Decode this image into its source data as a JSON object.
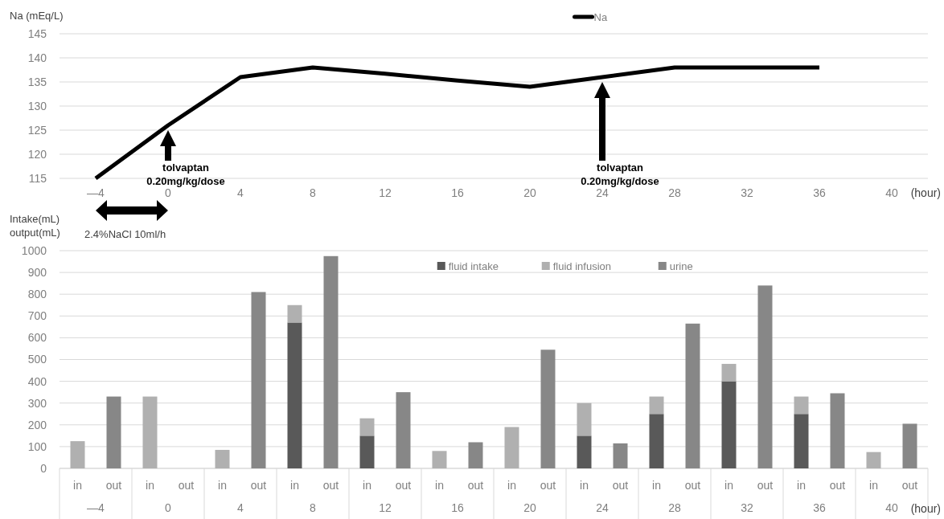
{
  "chart_data": [
    {
      "type": "line",
      "ylabel": "Na (mEq/L)",
      "xlabel": "(hour)",
      "categories": [
        "—4",
        "0",
        "4",
        "8",
        "12",
        "16",
        "20",
        "24",
        "28",
        "32",
        "36",
        "40"
      ],
      "series": [
        {
          "name": "Na",
          "color": "#000000",
          "values": [
            115,
            126,
            136,
            138,
            136.7,
            135.3,
            134,
            136,
            138,
            138,
            138,
            null
          ]
        }
      ],
      "ylim": [
        115,
        145
      ],
      "yticks": [
        115,
        120,
        125,
        130,
        135,
        140,
        145
      ],
      "grid": "y",
      "legend": "top",
      "marker": "none",
      "annotations": [
        "tolvaptan\n0.20mg/kg/dose",
        "tolvaptan\n0.20mg/kg/dose",
        "2.4%NaCl 10ml/h"
      ]
    },
    {
      "type": "bar",
      "stacked": true,
      "ylabel": "Intake(mL)\noutput(mL)",
      "xlabel": "(hour)",
      "categories": [
        "in",
        "out",
        "in",
        "out",
        "in",
        "out",
        "in",
        "out",
        "in",
        "out",
        "in",
        "out",
        "in",
        "out",
        "in",
        "out",
        "in",
        "out",
        "in",
        "out",
        "in",
        "out",
        "in",
        "out"
      ],
      "series": [
        {
          "name": "fluid intake",
          "color": "#595959",
          "values": [
            null,
            null,
            null,
            null,
            null,
            null,
            670,
            null,
            150,
            null,
            null,
            null,
            null,
            null,
            150,
            null,
            250,
            null,
            400,
            null,
            250,
            null,
            null,
            null
          ]
        },
        {
          "name": "fluid infusion",
          "color": "#b0b0b0",
          "values": [
            125,
            null,
            330,
            null,
            85,
            null,
            80,
            null,
            80,
            null,
            80,
            null,
            190,
            null,
            150,
            null,
            80,
            null,
            80,
            null,
            80,
            null,
            75,
            null
          ]
        },
        {
          "name": "urine",
          "color": "#878787",
          "values": [
            null,
            330,
            null,
            null,
            null,
            810,
            null,
            975,
            null,
            350,
            null,
            120,
            null,
            545,
            null,
            115,
            null,
            665,
            null,
            840,
            null,
            345,
            null,
            205
          ]
        }
      ],
      "ylim": [
        0,
        1000
      ],
      "yticks": [
        0,
        100,
        200,
        300,
        400,
        500,
        600,
        700,
        800,
        900,
        1000
      ],
      "grid": "y",
      "legend": "top",
      "annotations": [
        "—4",
        "0",
        "4",
        "8",
        "12",
        "16",
        "20",
        "24",
        "28",
        "32",
        "36",
        "40"
      ]
    }
  ]
}
